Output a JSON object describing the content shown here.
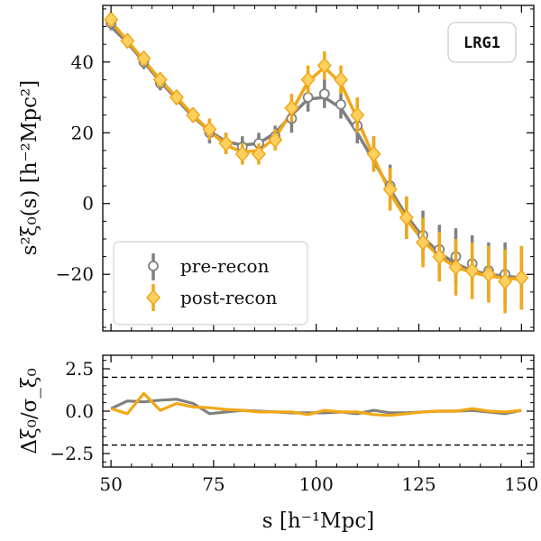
{
  "chart_data": [
    {
      "type": "line",
      "ylabel": "s²ξ₀(s) [h⁻²Mpc²]",
      "xlim": [
        48,
        153
      ],
      "ylim": [
        -36,
        56
      ],
      "yticks": [
        -20,
        0,
        20,
        40
      ],
      "annotation": "LRG1",
      "legend_position": "bottom-left",
      "colors": {
        "pre": "#808080",
        "post": "#F0A818",
        "post_marker": "#FFD060"
      },
      "series": [
        {
          "name": "pre-recon",
          "marker": "open-circle",
          "x": [
            50,
            54,
            58,
            62,
            66,
            70,
            74,
            78,
            82,
            86,
            90,
            94,
            98,
            102,
            106,
            110,
            114,
            118,
            122,
            126,
            130,
            134,
            138,
            142,
            146,
            150
          ],
          "y": [
            51,
            46,
            40,
            34,
            30,
            25,
            20,
            17,
            16,
            17,
            19,
            24,
            30,
            31,
            28,
            22,
            14,
            5,
            -4,
            -9,
            -13,
            -15,
            -17,
            -19,
            -20,
            -21
          ],
          "err": [
            2,
            2,
            2,
            2,
            2,
            2,
            3,
            3,
            3,
            3,
            3,
            4,
            4,
            4,
            4,
            5,
            5,
            6,
            6,
            7,
            7,
            8,
            8,
            8,
            9,
            9
          ],
          "model": [
            50,
            45.5,
            40,
            34.5,
            29.5,
            24.5,
            20.5,
            17.5,
            16.5,
            17,
            20,
            25,
            29.5,
            30,
            27,
            20,
            12,
            4,
            -3.5,
            -9.5,
            -14,
            -17,
            -19,
            -20,
            -20.5,
            -21
          ]
        },
        {
          "name": "post-recon",
          "marker": "diamond",
          "x": [
            50,
            54,
            58,
            62,
            66,
            70,
            74,
            78,
            82,
            86,
            90,
            94,
            98,
            102,
            106,
            110,
            114,
            118,
            122,
            126,
            130,
            134,
            138,
            142,
            146,
            150
          ],
          "y": [
            52,
            46,
            41,
            35,
            30,
            25,
            21,
            17,
            14,
            14,
            18,
            27,
            35,
            39,
            35,
            25,
            14,
            4,
            -4,
            -11,
            -15,
            -18,
            -19,
            -20,
            -22,
            -21
          ],
          "err": [
            2,
            2,
            2,
            2,
            2,
            2,
            3,
            3,
            3,
            3,
            3,
            4,
            4,
            4,
            4,
            5,
            5,
            6,
            6,
            7,
            7,
            8,
            8,
            8,
            9,
            9
          ],
          "model": [
            51.5,
            46,
            40.5,
            35,
            30,
            25,
            20.5,
            16.5,
            14.5,
            15,
            18.5,
            26,
            34.5,
            38.5,
            34,
            24,
            13,
            3,
            -4.5,
            -10.5,
            -15,
            -18,
            -19.5,
            -20.5,
            -21,
            -21.5
          ]
        }
      ]
    },
    {
      "type": "line",
      "xlabel": "s [h⁻¹Mpc]",
      "ylabel": "Δξ₀/σ_ξ₀",
      "xlim": [
        48,
        153
      ],
      "ylim": [
        -3.3,
        3.3
      ],
      "xticks": [
        50,
        75,
        100,
        125,
        150
      ],
      "yticks": [
        -2.5,
        0.0,
        2.5
      ],
      "reference_lines": [
        2,
        -2
      ],
      "series": [
        {
          "name": "pre-recon",
          "x": [
            50,
            54,
            58,
            62,
            66,
            70,
            74,
            78,
            82,
            86,
            90,
            94,
            98,
            102,
            106,
            110,
            114,
            118,
            122,
            126,
            130,
            134,
            138,
            142,
            146,
            150
          ],
          "y": [
            0.15,
            0.6,
            0.55,
            0.65,
            0.7,
            0.45,
            -0.15,
            -0.05,
            0.05,
            0.0,
            -0.05,
            -0.1,
            -0.1,
            -0.1,
            -0.05,
            -0.15,
            0.05,
            -0.1,
            -0.1,
            -0.05,
            0.0,
            0.0,
            0.05,
            -0.05,
            -0.15,
            0.05
          ]
        },
        {
          "name": "post-recon",
          "x": [
            50,
            54,
            58,
            62,
            66,
            70,
            74,
            78,
            82,
            86,
            90,
            94,
            98,
            102,
            106,
            110,
            114,
            118,
            122,
            126,
            130,
            134,
            138,
            142,
            146,
            150
          ],
          "y": [
            0.15,
            -0.15,
            1.05,
            0.05,
            0.45,
            0.25,
            0.2,
            0.1,
            0.05,
            -0.05,
            -0.05,
            -0.05,
            -0.2,
            0.05,
            -0.05,
            -0.05,
            -0.2,
            -0.25,
            -0.15,
            -0.05,
            0.0,
            0.0,
            0.15,
            0.0,
            -0.05,
            0.05
          ]
        }
      ]
    }
  ]
}
